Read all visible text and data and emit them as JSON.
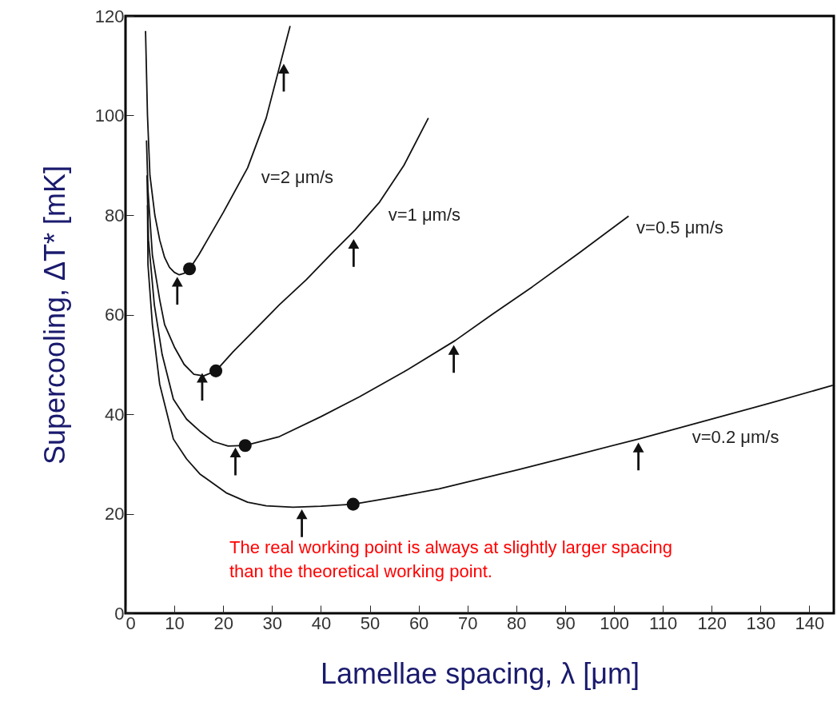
{
  "chart_data": {
    "type": "line",
    "xlabel": "Lamellae spacing, λ [μm]",
    "ylabel": "Supercooling, ΔT* [mK]",
    "xlim": [
      0,
      145
    ],
    "ylim": [
      0,
      120
    ],
    "xticks": [
      0,
      10,
      20,
      30,
      40,
      50,
      60,
      70,
      80,
      90,
      100,
      110,
      120,
      130,
      140
    ],
    "yticks": [
      0,
      20,
      40,
      60,
      80,
      100,
      120
    ],
    "grid": false,
    "series": [
      {
        "color": "#111111",
        "marker": "none",
        "x": [
          4.1,
          4.5,
          5,
          6,
          7,
          8,
          9,
          10,
          11,
          12,
          13,
          15,
          20,
          25,
          28.8,
          33.7
        ],
        "values": [
          117,
          100,
          88,
          80,
          75,
          71.5,
          69.5,
          68.5,
          68,
          68.3,
          69,
          72,
          80.5,
          89.5,
          99.5,
          118
        ]
      },
      {
        "color": "#111111",
        "marker": "none",
        "x": [
          4.3,
          4.6,
          5.5,
          7,
          8,
          10,
          12,
          14,
          16,
          18.5,
          22,
          26,
          31.5,
          37,
          42.5,
          47,
          52,
          57,
          62
        ],
        "values": [
          95,
          85,
          72,
          63,
          58,
          53.5,
          50,
          48,
          47.7,
          48.7,
          52.5,
          56.5,
          62,
          67,
          72.6,
          77,
          82.6,
          90,
          99.5
        ]
      },
      {
        "color": "#111111",
        "marker": "none",
        "x": [
          4.4,
          4.7,
          5.9,
          7.5,
          9.8,
          12.5,
          15.2,
          18,
          21,
          24.5,
          31.5,
          40,
          47.9,
          57,
          67.5,
          75,
          83.3,
          93,
          103
        ],
        "values": [
          88,
          75,
          62,
          52,
          43,
          39,
          36.6,
          34.5,
          33.6,
          33.7,
          35.5,
          39.5,
          43.5,
          48.5,
          54.8,
          60,
          65.6,
          72.5,
          79.8
        ]
      },
      {
        "color": "#111111",
        "marker": "none",
        "x": [
          4.5,
          4.6,
          5.5,
          7,
          9.8,
          12.5,
          15.2,
          20.6,
          25,
          28.8,
          34.3,
          40,
          46.6,
          55,
          64.2,
          80.6,
          93,
          105,
          120,
          133,
          144.8
        ],
        "values": [
          82,
          70,
          58,
          46,
          35,
          31,
          28,
          24.2,
          22.3,
          21.6,
          21.3,
          21.5,
          21.9,
          23.3,
          25,
          28.9,
          32,
          35,
          39,
          42.5,
          45.8
        ]
      },
      {
        "type": "scatter",
        "color": "#111111",
        "marker": "circle",
        "x": [
          13.1,
          18.5,
          24.5,
          46.6
        ],
        "values": [
          69.2,
          48.7,
          33.7,
          21.9
        ]
      },
      {
        "type": "scatter",
        "color": "#111111",
        "marker": "triangle",
        "x": [
          10.6,
          32.4,
          15.7,
          46.7,
          22.5,
          67.2,
          36.1,
          105
        ],
        "values": [
          64.8,
          107.6,
          45.5,
          72.4,
          30.5,
          51.1,
          18.1,
          31.5
        ]
      }
    ],
    "annotations": [
      {
        "text": "v=2 μm/s",
        "x": 25.5,
        "y": 89.5
      },
      {
        "text": "v=1 μm/s",
        "x": 51.5,
        "y": 82
      },
      {
        "text": "v=0.5 μm/s",
        "x": 102.3,
        "y": 79.4
      },
      {
        "text": "v=0.2 μm/s",
        "x": 113.7,
        "y": 37.3
      },
      "The real working point is always at slightly larger spacing\nthan the theoretical working point."
    ]
  }
}
